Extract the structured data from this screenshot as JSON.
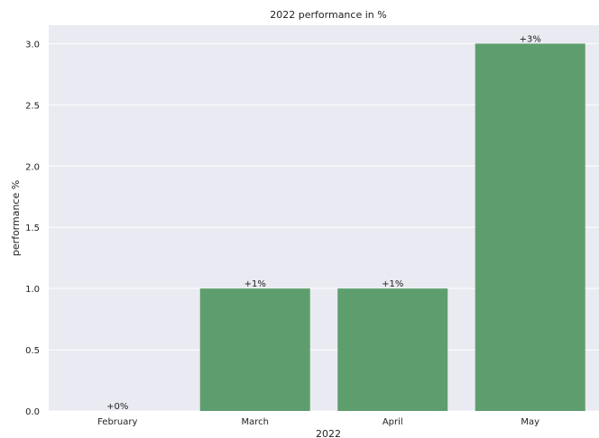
{
  "chart_data": {
    "type": "bar",
    "title": "2022 performance in %",
    "xlabel": "2022",
    "ylabel": "performance %",
    "categories": [
      "February",
      "March",
      "April",
      "May"
    ],
    "values": [
      0,
      1,
      1,
      3
    ],
    "data_labels": [
      "+0%",
      "+1%",
      "+1%",
      "+3%"
    ],
    "ylim": [
      0,
      3.15
    ],
    "yticks": [
      0.0,
      0.5,
      1.0,
      1.5,
      2.0,
      2.5,
      3.0
    ],
    "ytick_labels": [
      "0.0",
      "0.5",
      "1.0",
      "1.5",
      "2.0",
      "2.5",
      "3.0"
    ],
    "grid": true,
    "colors": {
      "bar": "#5e9e6e",
      "background": "#eaeaf2",
      "grid": "#ffffff"
    }
  }
}
